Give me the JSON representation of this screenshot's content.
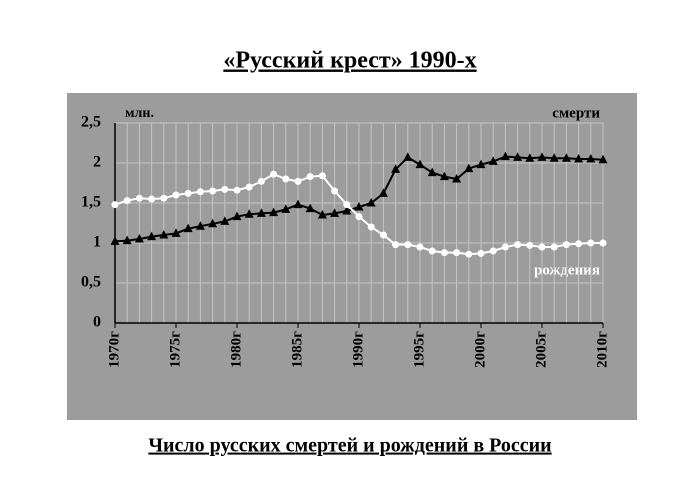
{
  "chart_data": {
    "type": "line",
    "title": "«Русский крест» 1990-х",
    "caption": "Число русских смертей и рождений в России",
    "y_unit": "млн.",
    "x": [
      1970,
      1971,
      1972,
      1973,
      1974,
      1975,
      1976,
      1977,
      1978,
      1979,
      1980,
      1981,
      1982,
      1983,
      1984,
      1985,
      1986,
      1987,
      1988,
      1989,
      1990,
      1991,
      1992,
      1993,
      1994,
      1995,
      1996,
      1997,
      1998,
      1999,
      2000,
      2001,
      2002,
      2003,
      2004,
      2005,
      2006,
      2007,
      2008,
      2009,
      2010
    ],
    "series": [
      {
        "name": "смерти",
        "color": "#000000",
        "marker": "triangle",
        "values": [
          1.02,
          1.03,
          1.05,
          1.08,
          1.1,
          1.12,
          1.18,
          1.21,
          1.24,
          1.27,
          1.33,
          1.36,
          1.37,
          1.38,
          1.42,
          1.48,
          1.43,
          1.35,
          1.37,
          1.4,
          1.45,
          1.5,
          1.62,
          1.92,
          2.07,
          1.98,
          1.88,
          1.83,
          1.8,
          1.93,
          1.98,
          2.02,
          2.08,
          2.07,
          2.06,
          2.07,
          2.06,
          2.06,
          2.05,
          2.05,
          2.04
        ]
      },
      {
        "name": "рождения",
        "color": "#ffffff",
        "marker": "circle",
        "values": [
          1.48,
          1.53,
          1.56,
          1.55,
          1.56,
          1.6,
          1.62,
          1.64,
          1.65,
          1.67,
          1.66,
          1.7,
          1.77,
          1.86,
          1.8,
          1.77,
          1.83,
          1.84,
          1.65,
          1.48,
          1.33,
          1.2,
          1.1,
          0.98,
          0.98,
          0.95,
          0.9,
          0.88,
          0.88,
          0.86,
          0.87,
          0.9,
          0.95,
          0.98,
          0.97,
          0.95,
          0.95,
          0.98,
          0.99,
          1.0,
          1.0
        ]
      }
    ],
    "xlim": [
      1970,
      2010
    ],
    "ylim": [
      0,
      2.5
    ],
    "xticks": [
      {
        "value": 1970,
        "label": "1970г"
      },
      {
        "value": 1975,
        "label": "1975г"
      },
      {
        "value": 1980,
        "label": "1980г"
      },
      {
        "value": 1985,
        "label": "1985г"
      },
      {
        "value": 1990,
        "label": "1990г"
      },
      {
        "value": 1995,
        "label": "1995г"
      },
      {
        "value": 2000,
        "label": "2000г"
      },
      {
        "value": 2005,
        "label": "2005г"
      },
      {
        "value": 2010,
        "label": "2010г"
      }
    ],
    "yticks": [
      0,
      {
        "value": 0.5,
        "label": "0,5"
      },
      1,
      {
        "value": 1.5,
        "label": "1,5"
      },
      2,
      {
        "value": 2.5,
        "label": "2,5"
      }
    ],
    "grid": true
  }
}
